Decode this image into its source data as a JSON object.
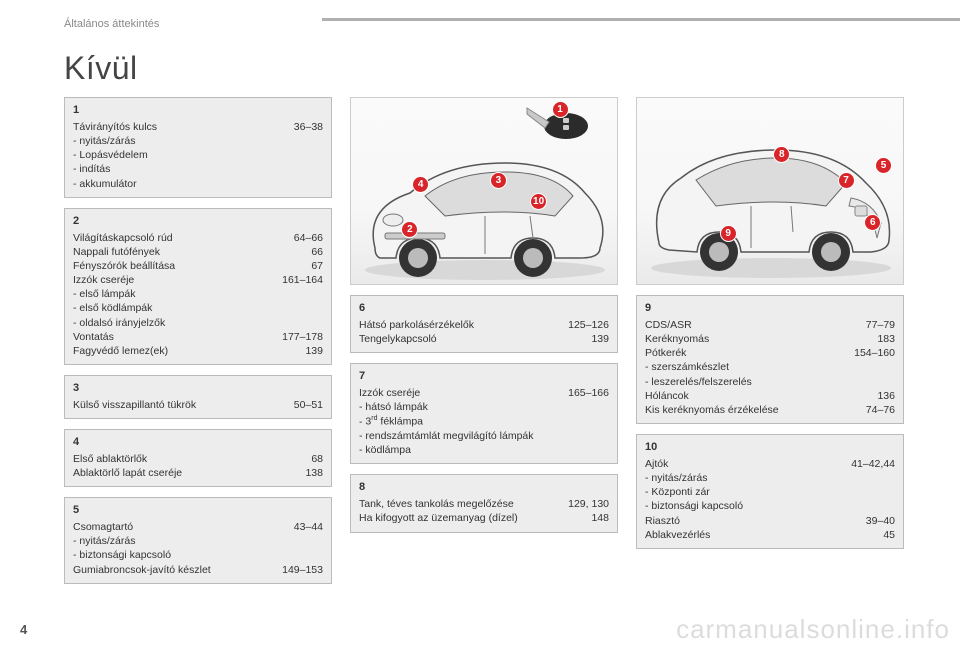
{
  "header": {
    "section": "Általános áttekintés",
    "title": "Kívül"
  },
  "pagenum": "4",
  "watermark": "carmanualsonline.info",
  "colors": {
    "marker": "#d9252a",
    "box_bg": "#ededed",
    "box_border": "#bbbbbb"
  },
  "boxes": {
    "b1": {
      "num": "1",
      "rows": [
        {
          "label": "Távirányítós kulcs",
          "pg": "36–38"
        }
      ],
      "subs": [
        "nyitás/zárás",
        "Lopásvédelem",
        "indítás",
        "akkumulátor"
      ]
    },
    "b2": {
      "num": "2",
      "rows": [
        {
          "label": "Világításkapcsoló rúd",
          "pg": "64–66"
        },
        {
          "label": "Nappali futófények",
          "pg": "66"
        },
        {
          "label": "Fényszórók beállítása",
          "pg": "67"
        },
        {
          "label": "Izzók cseréje",
          "pg": "161–164"
        }
      ],
      "subs": [
        "első lámpák",
        "első ködlámpák",
        "oldalsó irányjelzők"
      ],
      "rows2": [
        {
          "label": "Vontatás",
          "pg": "177–178"
        },
        {
          "label": "Fagyvédő lemez(ek)",
          "pg": "139"
        }
      ]
    },
    "b3": {
      "num": "3",
      "rows": [
        {
          "label": "Külső visszapillantó tükrök",
          "pg": "50–51"
        }
      ]
    },
    "b4": {
      "num": "4",
      "rows": [
        {
          "label": "Első ablaktörlők",
          "pg": "68"
        },
        {
          "label": "Ablaktörlő lapát cseréje",
          "pg": "138"
        }
      ]
    },
    "b5": {
      "num": "5",
      "rows": [
        {
          "label": "Csomagtartó",
          "pg": "43–44"
        }
      ],
      "subs": [
        "nyitás/zárás",
        "biztonsági kapcsoló"
      ],
      "rows2": [
        {
          "label": "Gumiabroncsok-javító készlet",
          "pg": "149–153"
        }
      ]
    },
    "b6": {
      "num": "6",
      "rows": [
        {
          "label": "Hátsó parkolásérzékelők",
          "pg": "125–126"
        },
        {
          "label": "Tengelykapcsoló",
          "pg": "139"
        }
      ]
    },
    "b7": {
      "num": "7",
      "rows": [
        {
          "label": "Izzók cseréje",
          "pg": "165–166"
        }
      ],
      "subs": [
        "hátsó lámpák",
        "3rd féklámpa",
        "rendszámtámlát megvilágító lámpák",
        "ködlámpa"
      ]
    },
    "b8": {
      "num": "8",
      "rows": [
        {
          "label": "Tank, téves tankolás megelőzése",
          "pg": "129, 130"
        },
        {
          "label": "Ha kifogyott az üzemanyag (dízel)",
          "pg": "148"
        }
      ]
    },
    "b9": {
      "num": "9",
      "rows": [
        {
          "label": "CDS/ASR",
          "pg": "77–79"
        },
        {
          "label": "Keréknyomás",
          "pg": "183"
        },
        {
          "label": "Pótkerék",
          "pg": "154–160"
        }
      ],
      "subs": [
        "szerszámkészlet",
        "leszerelés/felszerelés"
      ],
      "rows2": [
        {
          "label": "Hóláncok",
          "pg": "136"
        },
        {
          "label": "Kis keréknyomás érzékelése",
          "pg": "74–76"
        }
      ]
    },
    "b10": {
      "num": "10",
      "rows": [
        {
          "label": "Ajtók",
          "pg": "41–42,44"
        }
      ],
      "subs": [
        "nyitás/zárás",
        "Központi zár",
        "biztonsági kapcsoló"
      ],
      "rows2": [
        {
          "label": "Riasztó",
          "pg": "39–40"
        },
        {
          "label": "Ablakvezérlés",
          "pg": "45"
        }
      ]
    }
  },
  "figA": {
    "markers": [
      {
        "n": "1",
        "x": 78,
        "y": 6
      },
      {
        "n": "4",
        "x": 26,
        "y": 46
      },
      {
        "n": "3",
        "x": 55,
        "y": 44
      },
      {
        "n": "10",
        "x": 70,
        "y": 55
      },
      {
        "n": "2",
        "x": 22,
        "y": 70
      }
    ]
  },
  "figB": {
    "markers": [
      {
        "n": "8",
        "x": 54,
        "y": 30
      },
      {
        "n": "7",
        "x": 78,
        "y": 44
      },
      {
        "n": "5",
        "x": 92,
        "y": 36
      },
      {
        "n": "6",
        "x": 88,
        "y": 66
      },
      {
        "n": "9",
        "x": 34,
        "y": 72
      }
    ]
  }
}
